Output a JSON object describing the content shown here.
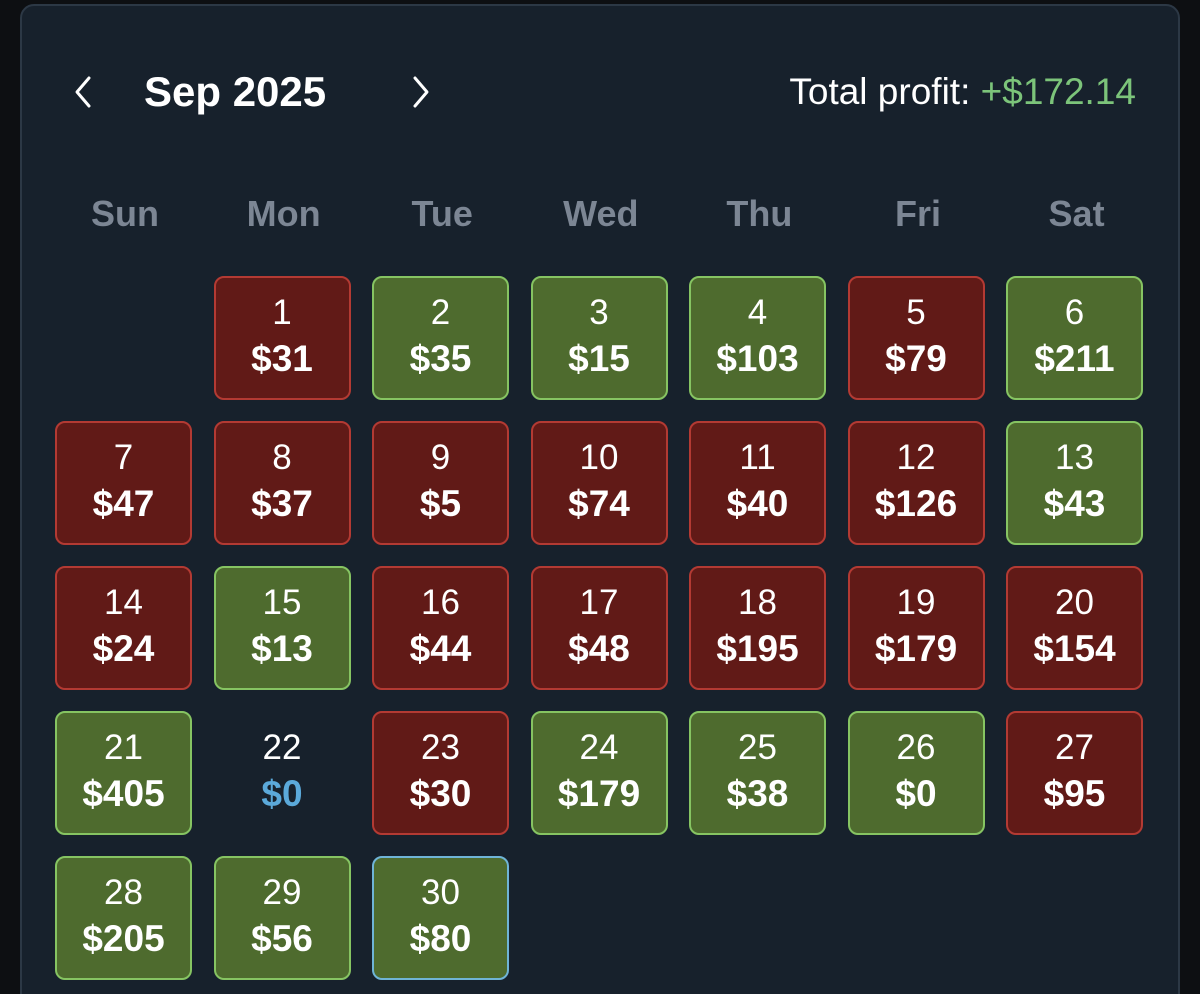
{
  "header": {
    "month_label": "Sep 2025",
    "total_label": "Total profit: ",
    "total_value": "+$172.14"
  },
  "icons": {
    "prev": "chevron-left-icon",
    "next": "chevron-right-icon"
  },
  "colors": {
    "background": "#17212c",
    "loss_fill": "#611a17",
    "loss_border": "#b33a33",
    "win_fill": "#4e6b2e",
    "win_border": "#86c462",
    "today_border": "#6fb4d6",
    "zero_amount": "#5ba9da",
    "profit_text": "#7cc47a",
    "weekday_text": "#7c8694"
  },
  "weekdays": [
    "Sun",
    "Mon",
    "Tue",
    "Wed",
    "Thu",
    "Fri",
    "Sat"
  ],
  "first_weekday_index": 1,
  "days": [
    {
      "day": "1",
      "amount": "$31",
      "status": "loss"
    },
    {
      "day": "2",
      "amount": "$35",
      "status": "win"
    },
    {
      "day": "3",
      "amount": "$15",
      "status": "win"
    },
    {
      "day": "4",
      "amount": "$103",
      "status": "win"
    },
    {
      "day": "5",
      "amount": "$79",
      "status": "loss"
    },
    {
      "day": "6",
      "amount": "$211",
      "status": "win"
    },
    {
      "day": "7",
      "amount": "$47",
      "status": "loss"
    },
    {
      "day": "8",
      "amount": "$37",
      "status": "loss"
    },
    {
      "day": "9",
      "amount": "$5",
      "status": "loss"
    },
    {
      "day": "10",
      "amount": "$74",
      "status": "loss"
    },
    {
      "day": "11",
      "amount": "$40",
      "status": "loss"
    },
    {
      "day": "12",
      "amount": "$126",
      "status": "loss"
    },
    {
      "day": "13",
      "amount": "$43",
      "status": "win"
    },
    {
      "day": "14",
      "amount": "$24",
      "status": "loss"
    },
    {
      "day": "15",
      "amount": "$13",
      "status": "win"
    },
    {
      "day": "16",
      "amount": "$44",
      "status": "loss"
    },
    {
      "day": "17",
      "amount": "$48",
      "status": "loss"
    },
    {
      "day": "18",
      "amount": "$195",
      "status": "loss"
    },
    {
      "day": "19",
      "amount": "$179",
      "status": "loss"
    },
    {
      "day": "20",
      "amount": "$154",
      "status": "loss"
    },
    {
      "day": "21",
      "amount": "$405",
      "status": "win"
    },
    {
      "day": "22",
      "amount": "$0",
      "status": "neutral"
    },
    {
      "day": "23",
      "amount": "$30",
      "status": "loss"
    },
    {
      "day": "24",
      "amount": "$179",
      "status": "win"
    },
    {
      "day": "25",
      "amount": "$38",
      "status": "win"
    },
    {
      "day": "26",
      "amount": "$0",
      "status": "win"
    },
    {
      "day": "27",
      "amount": "$95",
      "status": "loss"
    },
    {
      "day": "28",
      "amount": "$205",
      "status": "win"
    },
    {
      "day": "29",
      "amount": "$56",
      "status": "win"
    },
    {
      "day": "30",
      "amount": "$80",
      "status": "win",
      "today": true
    }
  ]
}
